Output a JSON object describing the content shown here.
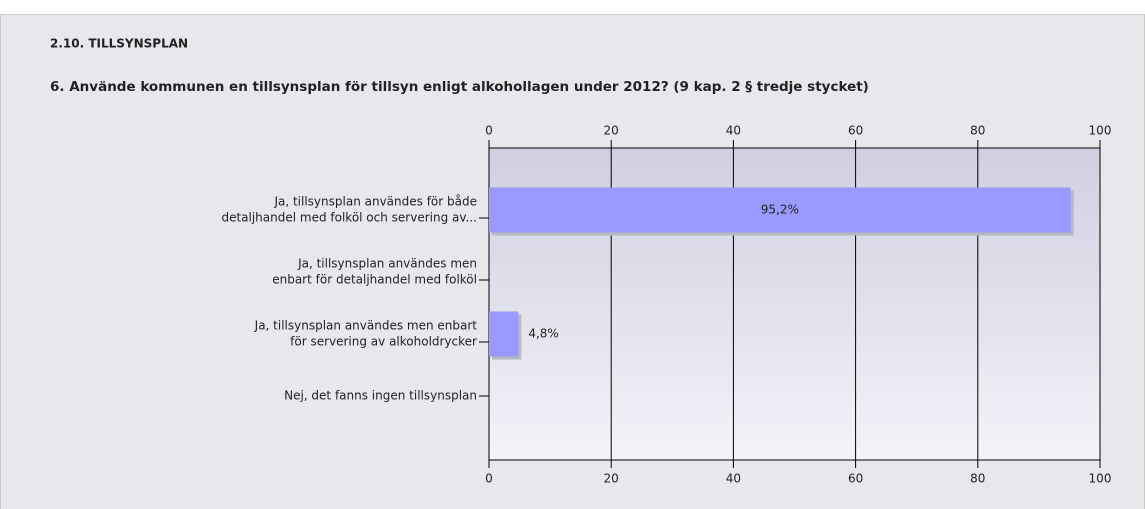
{
  "chart_data": {
    "type": "bar",
    "orientation": "horizontal",
    "section": "2.10. TILLSYNSPLAN",
    "title": "6. Använde kommunen en tillsynsplan för  tillsyn enligt alkohollagen under 2012? (9 kap. 2 § tredje stycket)",
    "categories": [
      [
        "Ja, tillsynsplan användes för både",
        "detaljhandel med folköl och servering av..."
      ],
      [
        "Ja, tillsynsplan användes men",
        "enbart för detaljhandel med folköl"
      ],
      [
        "Ja, tillsynsplan användes men enbart",
        "för servering av alkoholdrycker"
      ],
      [
        "Nej, det fanns ingen tillsynsplan"
      ]
    ],
    "values": [
      95.2,
      0,
      4.8,
      0
    ],
    "value_labels": [
      "95,2%",
      null,
      "4,8%",
      null
    ],
    "color": "#9999ff",
    "xlim": [
      0,
      100
    ],
    "xticks": [
      0,
      20,
      40,
      60,
      80,
      100
    ],
    "grid": true
  }
}
